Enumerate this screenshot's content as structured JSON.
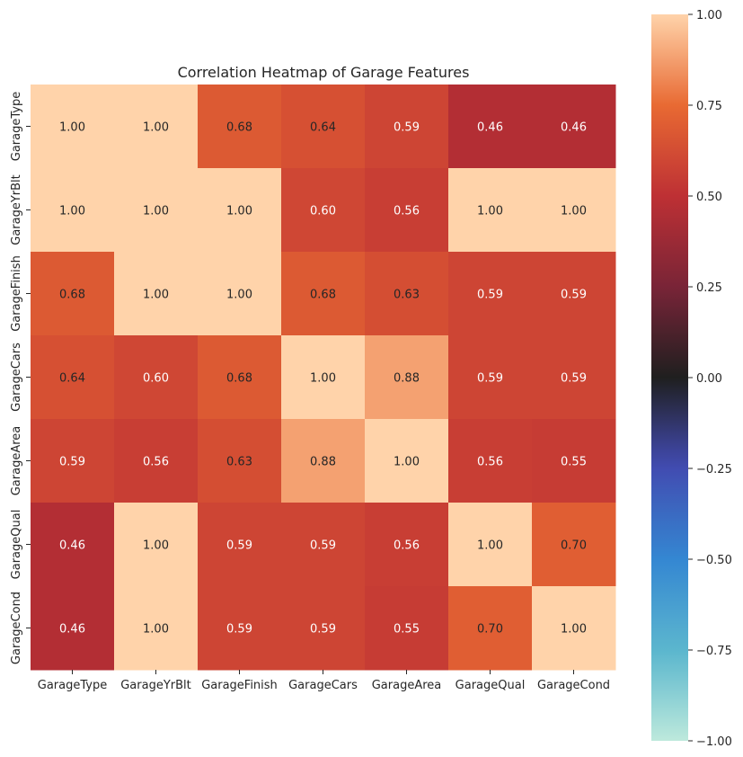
{
  "chart_data": {
    "type": "heatmap",
    "title": "Correlation Heatmap of Garage Features",
    "x_categories": [
      "GarageType",
      "GarageYrBlt",
      "GarageFinish",
      "GarageCars",
      "GarageArea",
      "GarageQual",
      "GarageCond"
    ],
    "y_categories": [
      "GarageType",
      "GarageYrBlt",
      "GarageFinish",
      "GarageCars",
      "GarageArea",
      "GarageQual",
      "GarageCond"
    ],
    "values": [
      [
        1.0,
        1.0,
        0.68,
        0.64,
        0.59,
        0.46,
        0.46
      ],
      [
        1.0,
        1.0,
        1.0,
        0.6,
        0.56,
        1.0,
        1.0
      ],
      [
        0.68,
        1.0,
        1.0,
        0.68,
        0.63,
        0.59,
        0.59
      ],
      [
        0.64,
        0.6,
        0.68,
        1.0,
        0.88,
        0.59,
        0.59
      ],
      [
        0.59,
        0.56,
        0.63,
        0.88,
        1.0,
        0.56,
        0.55
      ],
      [
        0.46,
        1.0,
        0.59,
        0.59,
        0.56,
        1.0,
        0.7
      ],
      [
        0.46,
        1.0,
        0.59,
        0.59,
        0.55,
        0.7,
        1.0
      ]
    ],
    "value_format": "0.00",
    "vmin": -1.0,
    "vmax": 1.0,
    "colormap": "icefire",
    "colorbar": {
      "placement": "right",
      "ticks": [
        1.0,
        0.75,
        0.5,
        0.25,
        0.0,
        -0.25,
        -0.5,
        -0.75,
        -1.0
      ],
      "tick_labels": [
        "1.00",
        "0.75",
        "0.50",
        "0.25",
        "0.00",
        "−0.25",
        "−0.50",
        "−0.75",
        "−1.00"
      ]
    },
    "annotations": true,
    "grid": false
  }
}
